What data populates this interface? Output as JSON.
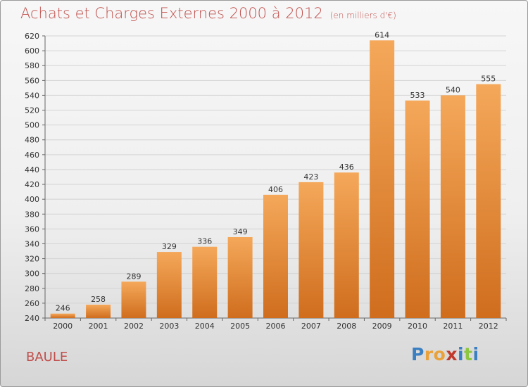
{
  "title": "Achats et Charges Externes 2000 à 2012",
  "unit_note": "(en milliers d'€)",
  "commune": "BAULE",
  "logo": {
    "letters": [
      "P",
      "r",
      "o",
      "x",
      "i",
      "t",
      "i"
    ],
    "colors": [
      "#3a7fc1",
      "#e9a23b",
      "#e9a23b",
      "#c0392b",
      "#3a7fc1",
      "#8dc63f",
      "#3a7fc1"
    ]
  },
  "colors": {
    "title": "#c0504d",
    "bar_light": "#f5a85a",
    "bar_dark": "#cf6d1d"
  },
  "chart_data": {
    "type": "bar",
    "title": "Achats et Charges Externes 2000 à 2012",
    "subtitle": "(en milliers d'€)",
    "categories": [
      "2000",
      "2001",
      "2002",
      "2003",
      "2004",
      "2005",
      "2006",
      "2007",
      "2008",
      "2009",
      "2010",
      "2011",
      "2012"
    ],
    "values": [
      246,
      258,
      289,
      329,
      336,
      349,
      406,
      423,
      436,
      614,
      533,
      540,
      555
    ],
    "ylim": [
      240,
      620
    ],
    "yticks": [
      240,
      260,
      280,
      300,
      320,
      340,
      360,
      380,
      400,
      420,
      440,
      460,
      480,
      500,
      520,
      540,
      560,
      580,
      600,
      620
    ],
    "grid": true,
    "legend": "none"
  }
}
